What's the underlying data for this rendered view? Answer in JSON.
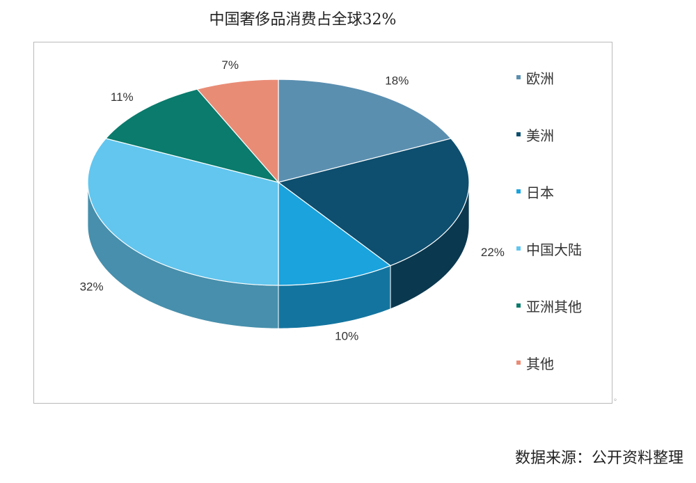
{
  "title": "中国奢侈品消费占全球32%",
  "source": "数据来源：公开资料整理",
  "chart_data": {
    "type": "pie",
    "title": "中国奢侈品消费占全球32%",
    "slices": [
      {
        "name": "欧洲",
        "value": 18,
        "label": "18%",
        "color": "#5b8fb0"
      },
      {
        "name": "美洲",
        "value": 22,
        "label": "22%",
        "color": "#0e4e6e"
      },
      {
        "name": "日本",
        "value": 10,
        "label": "10%",
        "color": "#1aa3dd"
      },
      {
        "name": "中国大陆",
        "value": 32,
        "label": "32%",
        "color": "#62c6ef"
      },
      {
        "name": "亚洲其他",
        "value": 11,
        "label": "11%",
        "color": "#0a7b6c"
      },
      {
        "name": "其他",
        "value": 7,
        "label": "7%",
        "color": "#e98c76"
      }
    ],
    "legend_position": "right",
    "style": "3d"
  }
}
